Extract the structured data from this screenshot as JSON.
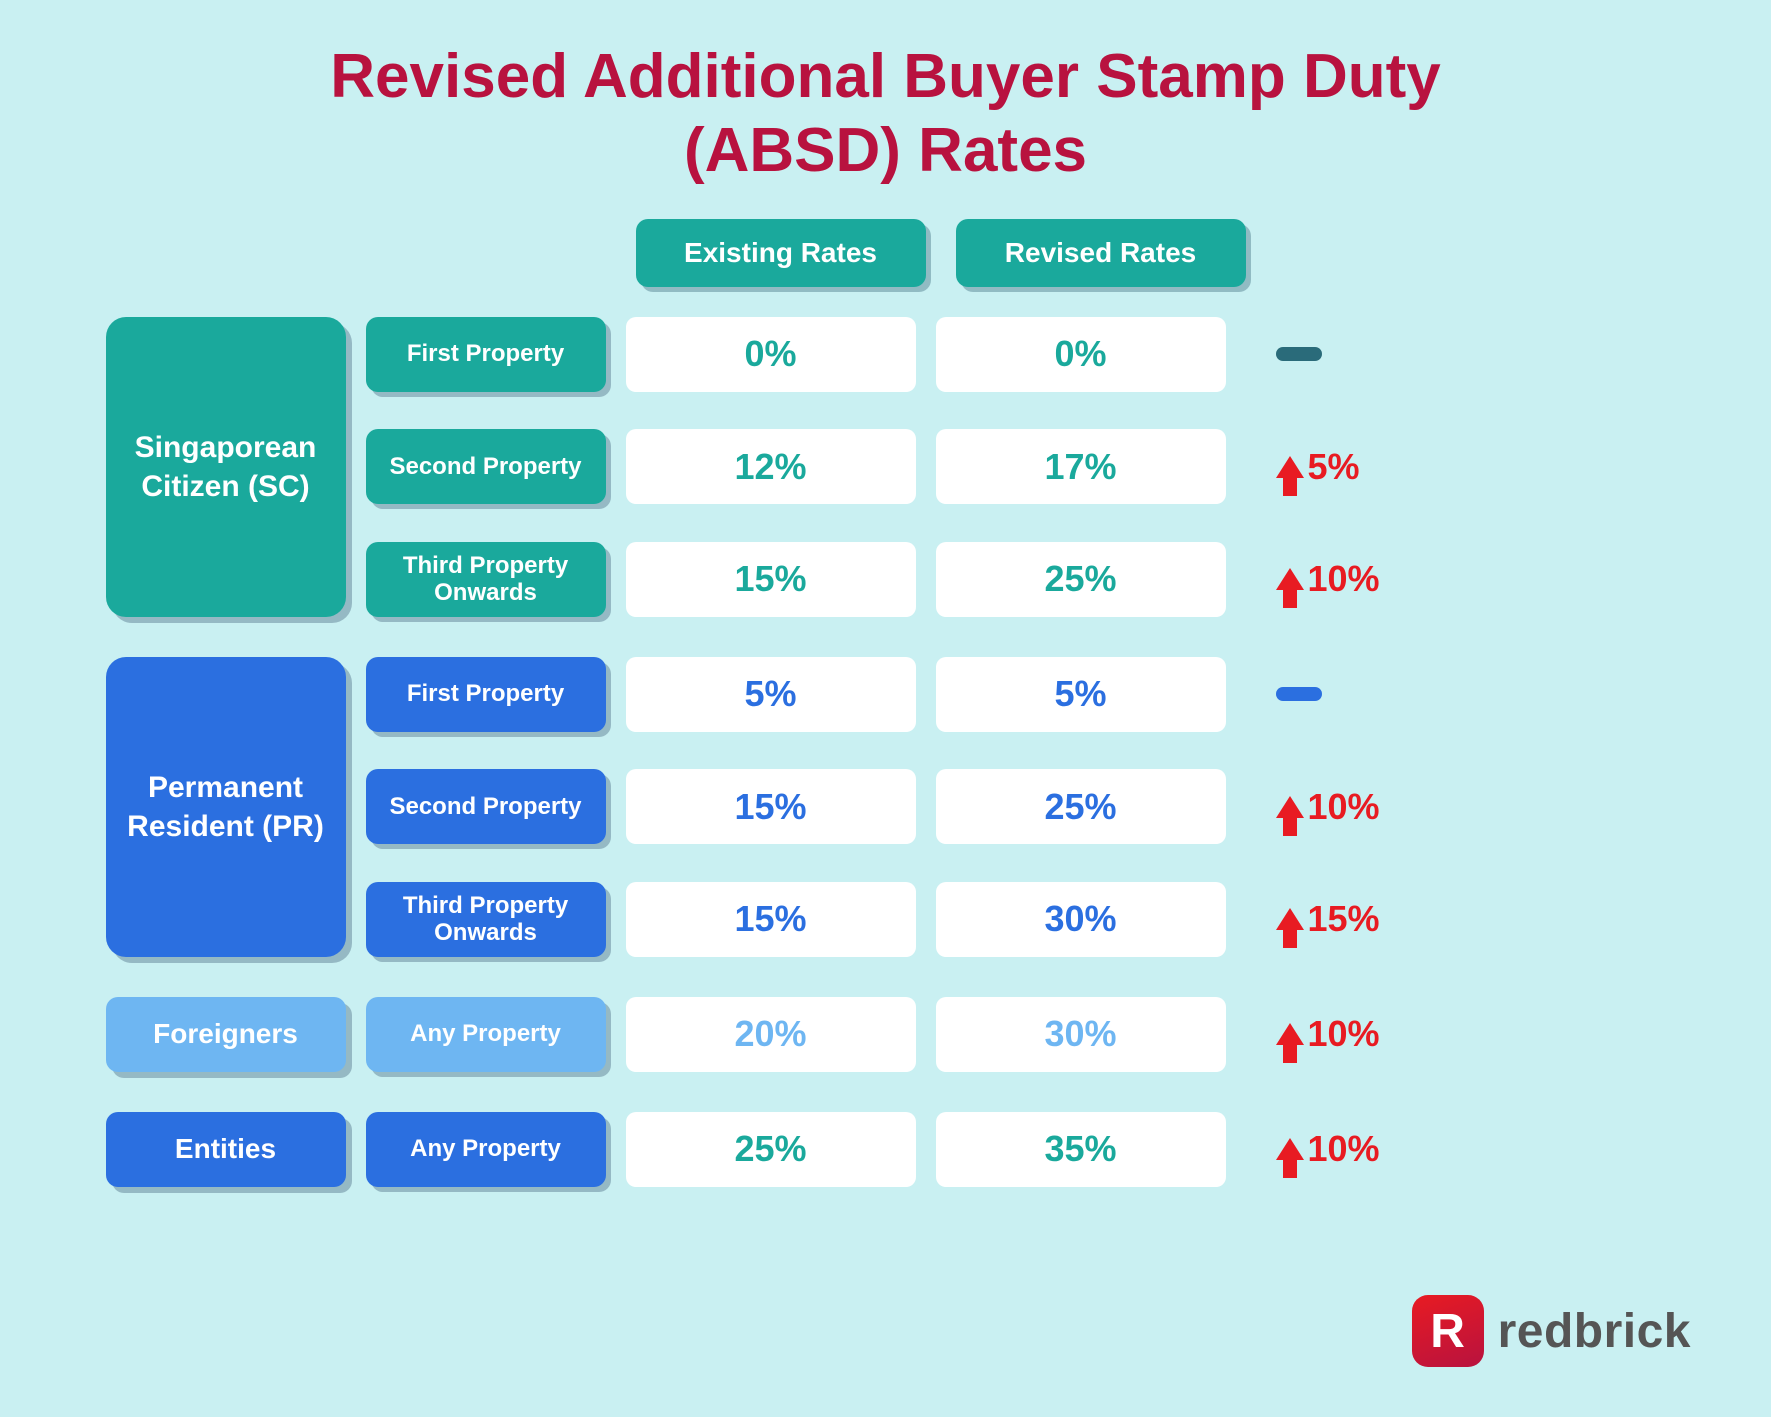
{
  "title_line1": "Revised Additional Buyer Stamp Duty",
  "title_line2": "(ABSD) Rates",
  "headers": {
    "existing": "Existing Rates",
    "revised": "Revised Rates"
  },
  "colors": {
    "background": "#c9f0f2",
    "title": "#b8123f",
    "teal": "#1aa99c",
    "blue": "#2b6fe0",
    "lightblue": "#6eb6f2",
    "red": "#e81b22",
    "white": "#ffffff"
  },
  "fontsize": {
    "title": 62,
    "group": 30,
    "prop": 24,
    "value": 36,
    "delta": 36,
    "header": 28
  },
  "groups": {
    "sc": {
      "label": "Singaporean Citizen (SC)",
      "text_color": "#1aa99c",
      "dash_color": "#2a6b7a",
      "rows": [
        {
          "prop": "First Property",
          "existing": "0%",
          "revised": "0%",
          "delta": null,
          "delta_type": "none"
        },
        {
          "prop": "Second Property",
          "existing": "12%",
          "revised": "17%",
          "delta": "5%",
          "delta_type": "up"
        },
        {
          "prop": "Third Property Onwards",
          "existing": "15%",
          "revised": "25%",
          "delta": "10%",
          "delta_type": "up"
        }
      ]
    },
    "pr": {
      "label": "Permanent Resident (PR)",
      "text_color": "#2b6fe0",
      "dash_color": "#2b6fe0",
      "rows": [
        {
          "prop": "First Property",
          "existing": "5%",
          "revised": "5%",
          "delta": null,
          "delta_type": "none"
        },
        {
          "prop": "Second Property",
          "existing": "15%",
          "revised": "25%",
          "delta": "10%",
          "delta_type": "up"
        },
        {
          "prop": "Third Property Onwards",
          "existing": "15%",
          "revised": "30%",
          "delta": "15%",
          "delta_type": "up"
        }
      ]
    },
    "for": {
      "label": "Foreigners",
      "text_color": "#6eb6f2",
      "rows": [
        {
          "prop": "Any Property",
          "existing": "20%",
          "revised": "30%",
          "delta": "10%",
          "delta_type": "up"
        }
      ]
    },
    "ent": {
      "label": "Entities",
      "text_color": "#1aa99c",
      "rows": [
        {
          "prop": "Any Property",
          "existing": "25%",
          "revised": "35%",
          "delta": "10%",
          "delta_type": "up"
        }
      ]
    }
  },
  "logo": {
    "badge": "R",
    "text": "redbrick"
  }
}
